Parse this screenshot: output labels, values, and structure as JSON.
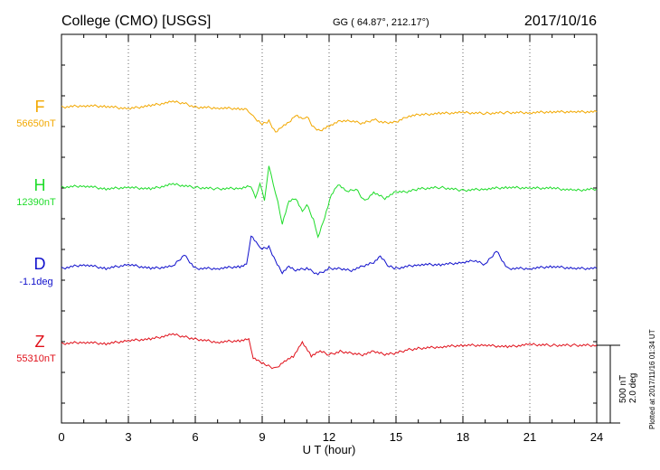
{
  "header": {
    "station": "College (CMO)  [USGS]",
    "coords": "GG ( 64.87°, 212.17°)",
    "date": "2017/10/16"
  },
  "footer": {
    "plotted": "Plotted at 2017/11/16 01:34 UT"
  },
  "scale": {
    "nt": "500 nT",
    "deg": "2.0 deg"
  },
  "colors": {
    "F": "#f2a800",
    "H": "#1fdc2a",
    "D": "#1010cc",
    "Z": "#e0101a",
    "axis": "#000000"
  },
  "chart_data": {
    "type": "line",
    "xlabel": "U T (hour)",
    "xlim": [
      0,
      24
    ],
    "x_ticks": [
      "0",
      "3",
      "6",
      "9",
      "12",
      "15",
      "18",
      "21",
      "24"
    ],
    "grid": true,
    "series": [
      {
        "name": "F",
        "baseline_label": "56650nT",
        "x": [
          0,
          1,
          2,
          3,
          4,
          5,
          5.5,
          6,
          7,
          8,
          8.3,
          8.5,
          8.7,
          9,
          9.3,
          9.6,
          9.9,
          10.2,
          10.5,
          10.8,
          11,
          11.3,
          11.6,
          12,
          12.5,
          13,
          13.5,
          14,
          14.5,
          15,
          15.5,
          16,
          17,
          18,
          19,
          20,
          21,
          22,
          23,
          24
        ],
        "y": [
          20,
          30,
          25,
          10,
          30,
          55,
          45,
          20,
          15,
          10,
          5,
          -20,
          -60,
          -90,
          -70,
          -140,
          -100,
          -80,
          -30,
          -60,
          -40,
          -110,
          -130,
          -100,
          -70,
          -70,
          -85,
          -60,
          -80,
          -75,
          -40,
          -30,
          -20,
          -15,
          -20,
          -15,
          -15,
          -10,
          -10,
          -10
        ]
      },
      {
        "name": "H",
        "baseline_label": "12390nT",
        "x": [
          0,
          1,
          2,
          3,
          4,
          5,
          6,
          7,
          8,
          8.5,
          8.7,
          8.9,
          9.1,
          9.3,
          9.5,
          9.7,
          9.9,
          10.2,
          10.5,
          10.8,
          11,
          11.3,
          11.5,
          11.8,
          12.1,
          12.4,
          12.8,
          13.2,
          13.6,
          14,
          14.5,
          15,
          15.5,
          16,
          17,
          18,
          19,
          20,
          21,
          22,
          23,
          24
        ],
        "y": [
          10,
          20,
          0,
          10,
          0,
          30,
          10,
          0,
          5,
          20,
          -60,
          40,
          -80,
          150,
          20,
          -80,
          -220,
          -80,
          -60,
          -150,
          -100,
          -200,
          -310,
          -180,
          -40,
          30,
          -20,
          0,
          -80,
          -20,
          -60,
          -20,
          -20,
          0,
          10,
          -10,
          0,
          10,
          5,
          5,
          -10,
          0
        ],
        "ylim": [
          -500,
          500
        ]
      },
      {
        "name": "D",
        "baseline_label": "-1.1deg",
        "x": [
          0,
          1,
          2,
          3,
          4,
          5,
          5.5,
          6,
          7,
          8,
          8.3,
          8.5,
          8.8,
          9,
          9.3,
          9.6,
          9.9,
          10.2,
          10.5,
          11,
          11.5,
          12,
          12.5,
          13,
          13.5,
          14,
          14.3,
          14.7,
          15,
          16,
          17,
          18,
          18.5,
          19,
          19.5,
          20,
          21,
          22,
          23,
          24
        ],
        "y": [
          0.0,
          0.1,
          0.0,
          0.1,
          0.0,
          0.05,
          0.35,
          0.0,
          0.0,
          0.05,
          0.1,
          0.85,
          0.6,
          0.5,
          0.55,
          0.2,
          -0.1,
          0.05,
          -0.05,
          0.0,
          -0.15,
          0.0,
          0.0,
          -0.05,
          0.05,
          0.15,
          0.3,
          0.05,
          0.0,
          0.1,
          0.1,
          0.15,
          0.2,
          0.1,
          0.45,
          0.0,
          0.0,
          0.05,
          0.0,
          0.0
        ]
      },
      {
        "name": "Z",
        "baseline_label": "55310nT",
        "x": [
          0,
          1,
          2,
          3,
          4,
          5,
          5.5,
          6,
          7,
          8,
          8.4,
          8.6,
          8.9,
          9.2,
          9.6,
          10,
          10.4,
          10.8,
          11.2,
          11.6,
          12,
          12.5,
          13,
          13.5,
          14,
          14.5,
          15,
          15.5,
          16,
          17,
          18,
          19,
          20,
          21,
          22,
          23,
          24
        ],
        "y": [
          10,
          20,
          10,
          30,
          40,
          70,
          55,
          40,
          20,
          30,
          40,
          -80,
          -110,
          -130,
          -150,
          -100,
          -70,
          20,
          -70,
          -40,
          -60,
          -40,
          -50,
          -60,
          -40,
          -60,
          -50,
          -30,
          -20,
          -10,
          0,
          0,
          -10,
          5,
          0,
          0,
          0
        ]
      }
    ]
  }
}
